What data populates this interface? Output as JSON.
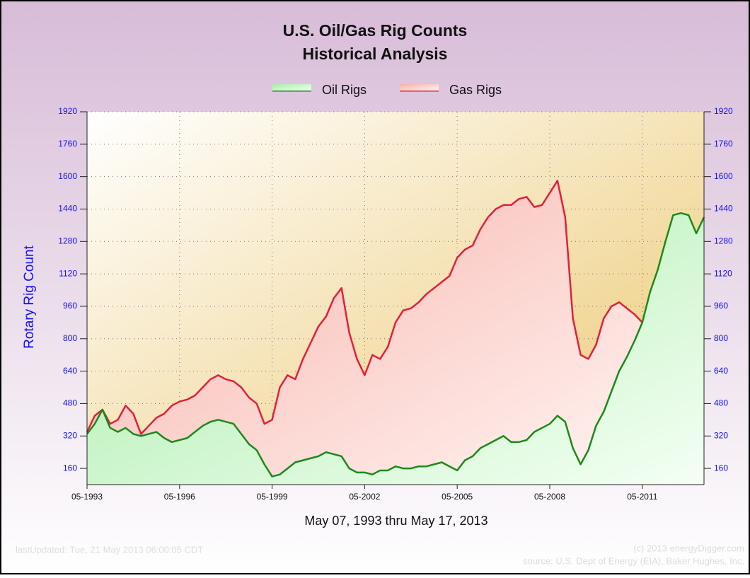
{
  "chart_data": {
    "type": "area",
    "title": "U.S. Oil/Gas Rig Counts",
    "subtitle": "Historical Analysis",
    "ylabel": "Rotary Rig Count",
    "xlabel": "May 07, 1993 thru May 17, 2013",
    "footer_left": "lastUpdated: Tue, 21 May 2013 06:00:05 CDT",
    "footer_right": [
      "(c) 2013 energyDigger.com",
      "source: U.S. Dept of Energy (EIA), Baker Hughes, Inc."
    ],
    "legend": "top",
    "grid": true,
    "ylim": [
      80,
      1920
    ],
    "yticks": [
      160,
      320,
      480,
      640,
      800,
      960,
      1120,
      1280,
      1440,
      1600,
      1760,
      1920
    ],
    "xlim": [
      "1993-05",
      "2013-05"
    ],
    "xticks": [
      {
        "value": "1993-05",
        "label": "05-1993"
      },
      {
        "value": "1996-05",
        "label": "05-1996"
      },
      {
        "value": "1999-05",
        "label": "05-1999"
      },
      {
        "value": "2002-05",
        "label": "05-2002"
      },
      {
        "value": "2005-05",
        "label": "05-2005"
      },
      {
        "value": "2008-05",
        "label": "05-2008"
      },
      {
        "value": "2011-05",
        "label": "05-2011"
      }
    ],
    "x": [
      "1993-05",
      "1993-08",
      "1993-11",
      "1994-02",
      "1994-05",
      "1994-08",
      "1994-11",
      "1995-02",
      "1995-05",
      "1995-08",
      "1995-11",
      "1996-02",
      "1996-05",
      "1996-08",
      "1996-11",
      "1997-02",
      "1997-05",
      "1997-08",
      "1997-11",
      "1998-02",
      "1998-05",
      "1998-08",
      "1998-11",
      "1999-02",
      "1999-05",
      "1999-08",
      "1999-11",
      "2000-02",
      "2000-05",
      "2000-08",
      "2000-11",
      "2001-02",
      "2001-05",
      "2001-08",
      "2001-11",
      "2002-02",
      "2002-05",
      "2002-08",
      "2002-11",
      "2003-02",
      "2003-05",
      "2003-08",
      "2003-11",
      "2004-02",
      "2004-05",
      "2004-08",
      "2004-11",
      "2005-02",
      "2005-05",
      "2005-08",
      "2005-11",
      "2006-02",
      "2006-05",
      "2006-08",
      "2006-11",
      "2007-02",
      "2007-05",
      "2007-08",
      "2007-11",
      "2008-02",
      "2008-05",
      "2008-08",
      "2008-11",
      "2009-02",
      "2009-05",
      "2009-08",
      "2009-11",
      "2010-02",
      "2010-05",
      "2010-08",
      "2010-11",
      "2011-02",
      "2011-05",
      "2011-08",
      "2011-11",
      "2012-02",
      "2012-05",
      "2012-08",
      "2012-11",
      "2013-02",
      "2013-05"
    ],
    "series": [
      {
        "name": "Gas Rigs",
        "color": "#e0203a",
        "values": [
          340,
          420,
          450,
          380,
          400,
          470,
          430,
          330,
          370,
          410,
          430,
          470,
          490,
          500,
          520,
          560,
          600,
          620,
          600,
          590,
          560,
          510,
          480,
          380,
          400,
          560,
          620,
          600,
          700,
          780,
          860,
          910,
          1000,
          1050,
          830,
          700,
          620,
          720,
          700,
          760,
          880,
          940,
          950,
          980,
          1020,
          1050,
          1080,
          1110,
          1200,
          1240,
          1260,
          1340,
          1400,
          1440,
          1460,
          1460,
          1490,
          1500,
          1450,
          1460,
          1520,
          1580,
          1400,
          900,
          720,
          700,
          770,
          900,
          960,
          980,
          950,
          920,
          880,
          null,
          null,
          null,
          null,
          null,
          null,
          null,
          null
        ]
      },
      {
        "name": "Oil Rigs",
        "color": "#1a8a1a",
        "values": [
          330,
          380,
          450,
          360,
          340,
          360,
          330,
          320,
          330,
          340,
          310,
          290,
          300,
          310,
          340,
          370,
          390,
          400,
          390,
          380,
          330,
          280,
          250,
          180,
          120,
          130,
          160,
          190,
          200,
          210,
          220,
          240,
          230,
          220,
          160,
          140,
          140,
          130,
          150,
          150,
          170,
          160,
          160,
          170,
          170,
          180,
          190,
          170,
          150,
          200,
          220,
          260,
          280,
          300,
          320,
          290,
          290,
          300,
          340,
          360,
          380,
          420,
          390,
          260,
          180,
          250,
          370,
          440,
          540,
          640,
          710,
          790,
          880,
          1030,
          1140,
          1280,
          1410,
          1420,
          1410,
          1320,
          1400
        ]
      }
    ]
  }
}
